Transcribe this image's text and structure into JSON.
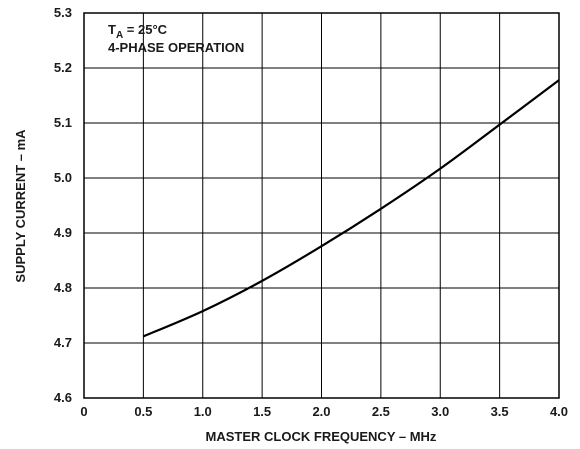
{
  "chart_data": {
    "type": "line",
    "xlabel": "MASTER CLOCK FREQUENCY – MHz",
    "ylabel": "SUPPLY CURRENT – mA",
    "xlim": [
      0,
      4.0
    ],
    "ylim": [
      4.6,
      5.3
    ],
    "x_ticks": [
      "0",
      "0.5",
      "1.0",
      "1.5",
      "2.0",
      "2.5",
      "3.0",
      "3.5",
      "4.0"
    ],
    "y_ticks": [
      "4.6",
      "4.7",
      "4.8",
      "4.9",
      "5.0",
      "5.1",
      "5.2",
      "5.3"
    ],
    "grid": true,
    "annotations": {
      "temp_symbol": "T",
      "temp_subscript": "A",
      "temp_value": " = 25°C",
      "mode": "4-PHASE OPERATION"
    },
    "series": [
      {
        "x": [
          0.5,
          1.0,
          1.5,
          2.0,
          2.5,
          3.0,
          3.5,
          4.0
        ],
        "y": [
          4.712,
          4.758,
          4.813,
          4.876,
          4.944,
          5.017,
          5.097,
          5.178
        ]
      }
    ],
    "colors": {
      "line": "#000000",
      "grid": "#000000"
    }
  }
}
